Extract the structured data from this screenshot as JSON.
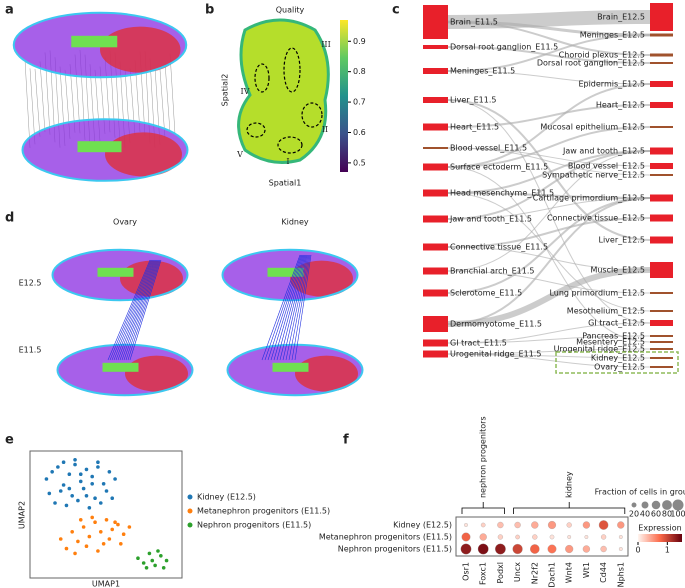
{
  "panels": [
    "a",
    "b",
    "c",
    "d",
    "e",
    "f"
  ],
  "panel_b": {
    "title": "Quality",
    "xlabel": "Spatial1",
    "ylabel": "Spatial2",
    "clim": [
      0.47,
      0.97
    ],
    "cticks": [
      0.5,
      0.6,
      0.7,
      0.8,
      0.9
    ],
    "regions": [
      "I",
      "II",
      "III",
      "IV",
      "V"
    ]
  },
  "panel_c": {
    "left": [
      {
        "label": "Brain_E11.5",
        "size": 34
      },
      {
        "label": "Dorsal root ganglion_E11.5",
        "size": 4
      },
      {
        "label": "Meninges_E11.5",
        "size": 6
      },
      {
        "label": "Liver_E11.5",
        "size": 6
      },
      {
        "label": "Heart_E11.5",
        "size": 7
      },
      {
        "label": "Blood vessel_E11.5",
        "size": 2
      },
      {
        "label": "Surface ectoderm_E11.5",
        "size": 7
      },
      {
        "label": "Head mesenchyme_E11.5",
        "size": 7
      },
      {
        "label": "Jaw and tooth_E11.5",
        "size": 7
      },
      {
        "label": "Connective tissue_E11.5",
        "size": 7
      },
      {
        "label": "Branchial arch_E11.5",
        "size": 7
      },
      {
        "label": "Sclerotome_E11.5",
        "size": 7
      },
      {
        "label": "Dermomyotome_E11.5",
        "size": 16
      },
      {
        "label": "GI tract_E11.5",
        "size": 7
      },
      {
        "label": "Urogenital ridge_E11.5",
        "size": 7
      }
    ],
    "right": [
      {
        "label": "Brain_E12.5",
        "size": 28
      },
      {
        "label": "Meninges_E12.5",
        "size": 3
      },
      {
        "label": "Choroid plexus_E12.5",
        "size": 3
      },
      {
        "label": "Dorsal root ganglion_E12.5",
        "size": 2
      },
      {
        "label": "Epidermis_E12.5",
        "size": 6
      },
      {
        "label": "Heart_E12.5",
        "size": 6
      },
      {
        "label": "Mucosal epithelium_E12.5",
        "size": 2
      },
      {
        "label": "Jaw and tooth_E12.5",
        "size": 7
      },
      {
        "label": "Blood vessel_E12.5",
        "size": 6
      },
      {
        "label": "Sympathetic nerve_E12.5",
        "size": 2
      },
      {
        "label": "Cartilage primordium_E12.5",
        "size": 7
      },
      {
        "label": "Connective tissue_E12.5",
        "size": 7
      },
      {
        "label": "Liver_E12.5",
        "size": 7
      },
      {
        "label": "Muscle_E12.5",
        "size": 16
      },
      {
        "label": "Lung primordium_E12.5",
        "size": 2
      },
      {
        "label": "Mesothelium_E12.5",
        "size": 2
      },
      {
        "label": "GI tract_E12.5",
        "size": 6
      },
      {
        "label": "Pancreas_E12.5",
        "size": 2
      },
      {
        "label": "Mesentery_E12.5",
        "size": 2
      },
      {
        "label": "Urogenital ridge_E12.5",
        "size": 2
      },
      {
        "label": "Kidney_E12.5",
        "size": 2
      },
      {
        "label": "Ovary_E12.5",
        "size": 2
      }
    ],
    "links": [
      [
        0,
        0,
        14
      ],
      [
        0,
        1,
        3
      ],
      [
        0,
        2,
        2
      ],
      [
        1,
        3,
        2
      ],
      [
        2,
        1,
        2
      ],
      [
        2,
        4,
        1
      ],
      [
        3,
        12,
        2
      ],
      [
        4,
        5,
        2
      ],
      [
        5,
        8,
        1
      ],
      [
        5,
        9,
        1
      ],
      [
        6,
        4,
        2
      ],
      [
        6,
        6,
        2
      ],
      [
        7,
        10,
        2
      ],
      [
        7,
        7,
        2
      ],
      [
        8,
        7,
        2
      ],
      [
        8,
        10,
        1
      ],
      [
        9,
        11,
        2
      ],
      [
        9,
        13,
        1
      ],
      [
        10,
        7,
        1
      ],
      [
        10,
        14,
        1
      ],
      [
        11,
        10,
        2
      ],
      [
        12,
        13,
        6
      ],
      [
        12,
        10,
        2
      ],
      [
        13,
        16,
        1
      ],
      [
        13,
        17,
        1
      ],
      [
        14,
        19,
        1
      ],
      [
        14,
        20,
        1
      ],
      [
        14,
        21,
        1
      ],
      [
        7,
        15,
        1
      ],
      [
        3,
        16,
        1
      ],
      [
        6,
        18,
        1
      ]
    ]
  },
  "panel_d": {
    "columns": [
      "Ovary",
      "Kidney"
    ],
    "rows": [
      "E12.5",
      "E11.5"
    ]
  },
  "panel_e": {
    "xlabel": "UMAP1",
    "ylabel": "UMAP2",
    "xlim": [
      0,
      100
    ],
    "ylim": [
      0,
      100
    ],
    "series": [
      {
        "name": "Kidney (E12.5)",
        "color": "#1f77b4",
        "x": [
          8,
          12,
          16,
          20,
          24,
          28,
          32,
          36,
          40,
          44,
          48,
          52,
          56,
          10,
          18,
          26,
          34,
          42,
          50,
          14,
          22,
          30,
          38,
          46,
          54,
          20,
          28,
          36,
          44,
          24,
          32,
          40
        ],
        "y": [
          80,
          86,
          90,
          75,
          84,
          92,
          78,
          88,
          82,
          90,
          76,
          86,
          80,
          68,
          70,
          66,
          72,
          64,
          70,
          60,
          58,
          62,
          56,
          60,
          64,
          94,
          96,
          66,
          94,
          72,
          84,
          76
        ]
      },
      {
        "name": "Metanephron progenitors (E11.5)",
        "color": "#ff7f0e",
        "x": [
          18,
          22,
          26,
          30,
          34,
          38,
          42,
          46,
          50,
          54,
          58,
          62,
          66,
          28,
          36,
          44,
          52,
          60,
          32,
          40,
          48,
          56
        ],
        "y": [
          30,
          22,
          36,
          28,
          40,
          32,
          44,
          36,
          46,
          38,
          42,
          34,
          40,
          18,
          24,
          20,
          30,
          26,
          46,
          48,
          26,
          44
        ]
      },
      {
        "name": "Nephron progenitors (E11.5)",
        "color": "#2ca02c",
        "x": [
          72,
          76,
          80,
          84,
          88,
          92,
          78,
          86,
          82,
          90
        ],
        "y": [
          14,
          10,
          18,
          8,
          16,
          12,
          6,
          20,
          12,
          6
        ]
      }
    ]
  },
  "panel_f": {
    "groups": [
      "Kidney (E12.5)",
      "Metanephron progenitors (E11.5)",
      "Nephron progenitors (E11.5)"
    ],
    "genes": [
      "Osr1",
      "Foxc1",
      "Podxl",
      "Uncx",
      "Nr2f2",
      "Dach1",
      "Wnt4",
      "Wt1",
      "Cd44",
      "Nphs1"
    ],
    "brackets": [
      {
        "label": "nephron progenitors",
        "from": 0,
        "to": 2
      },
      {
        "label": "kidney",
        "from": 3,
        "to": 9
      }
    ],
    "fraction": [
      [
        10,
        15,
        30,
        30,
        40,
        50,
        20,
        40,
        70,
        40
      ],
      [
        60,
        40,
        20,
        15,
        20,
        15,
        10,
        10,
        20,
        10
      ],
      [
        90,
        90,
        90,
        80,
        70,
        60,
        50,
        40,
        30,
        10
      ]
    ],
    "expression": [
      [
        0.1,
        0.2,
        0.3,
        0.3,
        0.4,
        0.5,
        0.2,
        0.5,
        0.9,
        0.5
      ],
      [
        0.8,
        0.4,
        0.2,
        0.2,
        0.2,
        0.1,
        0.1,
        0.1,
        0.2,
        0.1
      ],
      [
        1.3,
        1.4,
        1.3,
        1.0,
        0.8,
        0.7,
        0.5,
        0.4,
        0.3,
        0.1
      ]
    ],
    "size_title": "Fraction of cells in group (%)",
    "size_ticks": [
      20,
      40,
      60,
      80,
      100
    ],
    "color_title": "Expression",
    "clim": [
      0,
      1.5
    ],
    "cticks": [
      0,
      1
    ]
  }
}
